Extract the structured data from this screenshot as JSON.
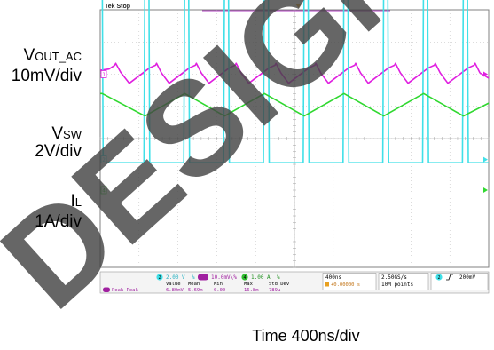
{
  "scope": {
    "status": "Tek Stop",
    "channel_markers": [
      "1",
      "2",
      "4"
    ]
  },
  "labels": {
    "vout_main": "V",
    "vout_sub": "OUT_AC",
    "vout_scale": "10mV/div",
    "vsw_main": "V",
    "vsw_sub": "SW",
    "vsw_scale": "2V/div",
    "il_main": "I",
    "il_sub": "L",
    "il_scale": "1A/div",
    "time": "Time 400ns/div"
  },
  "readout": {
    "ch2": "2.00 V",
    "ch2_extra": "%",
    "m": "10.0mV\\%",
    "ch4": "1.00 A",
    "ch4_extra": "%",
    "timebase": "400ns",
    "trig_pos": "+0.00000 s",
    "sample_rate": "2.50GS/s",
    "record": "10M points",
    "trig_level": "200mV",
    "stat_headers": [
      "Value",
      "Mean",
      "Min",
      "Max",
      "Std Dev"
    ],
    "stat_name": "Peak-Peak",
    "stat_values": [
      "6.80mV",
      "5.69m",
      "0.00",
      "16.8m",
      "789μ"
    ]
  },
  "watermark": "DESIGN",
  "colors": {
    "vout": "#e020e0",
    "vsw": "#40e0e8",
    "il": "#30d830",
    "grid": "#b8b8b8",
    "trigger": "#e8a020",
    "watermark": "#444444"
  },
  "chart_data": {
    "type": "line",
    "title": "",
    "xlabel": "Time 400ns/div",
    "x_unit": "ns",
    "xlim": [
      -2000,
      2000
    ],
    "x_divisions": 10,
    "y_divisions": 8,
    "series": [
      {
        "name": "VOUT_AC",
        "scale": "10mV/div",
        "offset_div": 2.0,
        "x": [
          -2000,
          -1910,
          -1850,
          -1840,
          -1790,
          -1700,
          -1490,
          -1430,
          -1420,
          -1370,
          -1290,
          -1080,
          -1020,
          -1010,
          -960,
          -880,
          -670,
          -610,
          -600,
          -550,
          -470,
          -260,
          -200,
          -190,
          -140,
          -60,
          150,
          210,
          220,
          270,
          350,
          560,
          620,
          630,
          680,
          760,
          970,
          1030,
          1040,
          1090,
          1170,
          1380,
          1440,
          1450,
          1500,
          1580,
          1790,
          1850,
          1860,
          1910,
          2000
        ],
        "y": [
          1.2,
          1.6,
          2.8,
          3.4,
          0.6,
          -2.8,
          2.0,
          2.8,
          3.4,
          0.4,
          -2.8,
          2.0,
          2.8,
          3.4,
          0.4,
          -2.8,
          2.0,
          2.8,
          3.4,
          0.4,
          -2.8,
          2.0,
          2.8,
          3.4,
          0.4,
          -2.8,
          2.0,
          2.8,
          3.4,
          0.4,
          -2.8,
          2.0,
          2.8,
          3.4,
          0.4,
          -2.8,
          2.0,
          2.8,
          3.4,
          0.4,
          -2.8,
          2.0,
          2.8,
          3.4,
          0.4,
          -2.8,
          2.0,
          2.8,
          3.4,
          0.4,
          -1.2
        ]
      },
      {
        "name": "VSW",
        "scale": "2V/div",
        "offset_div": -0.65,
        "x": [
          -2000,
          -1980,
          -1970,
          -1550,
          -1540,
          -1500,
          -1490,
          -1140,
          -1130,
          -1090,
          -1080,
          -730,
          -720,
          -680,
          -670,
          -320,
          -310,
          -270,
          -260,
          90,
          100,
          140,
          150,
          500,
          510,
          550,
          560,
          910,
          920,
          960,
          970,
          1320,
          1330,
          1370,
          1380,
          1730,
          1740,
          1780,
          1790,
          2000
        ],
        "y": [
          12.2,
          12.2,
          -0.2,
          -0.2,
          12.2,
          12.2,
          -0.2,
          -0.2,
          12.2,
          12.2,
          -0.2,
          -0.2,
          12.2,
          12.2,
          -0.2,
          -0.2,
          12.2,
          12.2,
          -0.2,
          -0.2,
          12.2,
          12.2,
          -0.2,
          -0.2,
          12.2,
          12.2,
          -0.2,
          -0.2,
          12.2,
          12.2,
          -0.2,
          -0.2,
          12.2,
          12.2,
          -0.2,
          -0.2,
          12.2,
          12.2,
          -0.2,
          -0.2
        ]
      },
      {
        "name": "IL",
        "scale": "1A/div",
        "offset_div": -1.6,
        "x": [
          -2000,
          -1980,
          -1540,
          -1130,
          -720,
          -310,
          100,
          510,
          920,
          1330,
          1740,
          2000
        ],
        "y": [
          3.0,
          3.0,
          2.3,
          3.0,
          2.3,
          3.0,
          2.3,
          3.0,
          2.3,
          3.0,
          2.3,
          2.7
        ]
      }
    ]
  }
}
